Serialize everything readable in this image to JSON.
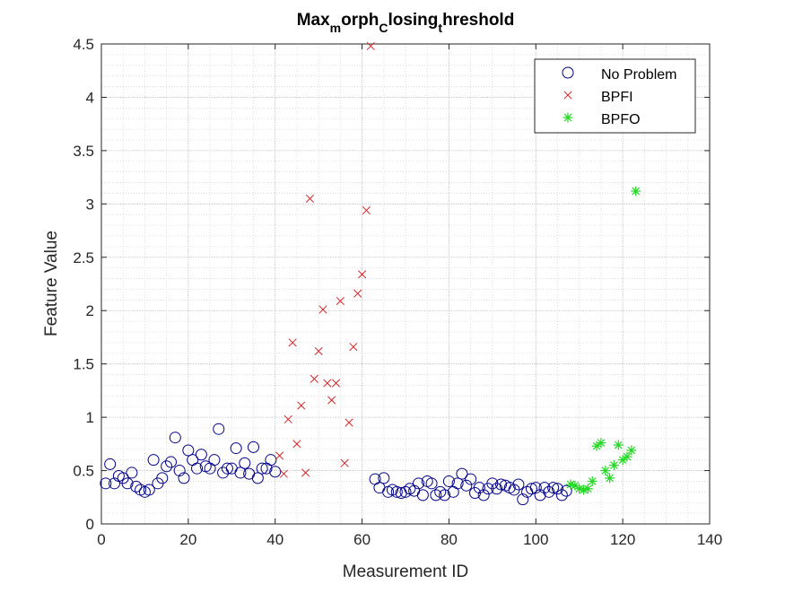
{
  "chart_data": {
    "type": "scatter",
    "title": "Max_morph_Closing_threshold",
    "title_parts": [
      {
        "text": "Max",
        "sub": false
      },
      {
        "text": "m",
        "sub": true
      },
      {
        "text": "orph",
        "sub": false
      },
      {
        "text": "C",
        "sub": true
      },
      {
        "text": "losing",
        "sub": false
      },
      {
        "text": "t",
        "sub": true
      },
      {
        "text": "hreshold",
        "sub": false
      }
    ],
    "xlabel": "Measurement ID",
    "ylabel": "Feature Value",
    "xlim": [
      0,
      140
    ],
    "ylim": [
      0,
      4.5
    ],
    "xticks": [
      0,
      20,
      40,
      60,
      80,
      100,
      120,
      140
    ],
    "xtick_labels": [
      "0",
      "20",
      "40",
      "60",
      "80",
      "100",
      "120",
      "140"
    ],
    "yticks": [
      0,
      0.5,
      1,
      1.5,
      2,
      2.5,
      3,
      3.5,
      4,
      4.5
    ],
    "ytick_labels": [
      "0",
      "0.5",
      "1",
      "1.5",
      "2",
      "2.5",
      "3",
      "3.5",
      "4",
      "4.5"
    ],
    "grid": true,
    "minor_grid": true,
    "legend_position": "top-right",
    "series": [
      {
        "name": "No Problem",
        "marker": "circle",
        "color": "#00008b",
        "x": [
          1,
          2,
          3,
          4,
          5,
          6,
          7,
          8,
          9,
          10,
          11,
          12,
          13,
          14,
          15,
          16,
          17,
          18,
          19,
          20,
          21,
          22,
          23,
          24,
          25,
          26,
          27,
          28,
          29,
          30,
          31,
          32,
          33,
          34,
          35,
          36,
          37,
          38,
          39,
          40,
          63,
          64,
          65,
          66,
          67,
          68,
          69,
          70,
          71,
          72,
          73,
          74,
          75,
          76,
          77,
          78,
          79,
          80,
          81,
          82,
          83,
          84,
          85,
          86,
          87,
          88,
          89,
          90,
          91,
          92,
          93,
          94,
          95,
          96,
          97,
          98,
          99,
          100,
          101,
          102,
          103,
          104,
          105,
          106,
          107
        ],
        "y": [
          0.38,
          0.56,
          0.38,
          0.45,
          0.43,
          0.38,
          0.48,
          0.35,
          0.32,
          0.3,
          0.32,
          0.6,
          0.38,
          0.43,
          0.54,
          0.58,
          0.81,
          0.5,
          0.43,
          0.69,
          0.6,
          0.52,
          0.65,
          0.54,
          0.52,
          0.6,
          0.89,
          0.48,
          0.52,
          0.52,
          0.71,
          0.48,
          0.57,
          0.47,
          0.72,
          0.43,
          0.52,
          0.52,
          0.6,
          0.49,
          0.42,
          0.34,
          0.43,
          0.3,
          0.32,
          0.3,
          0.29,
          0.3,
          0.33,
          0.31,
          0.38,
          0.27,
          0.4,
          0.38,
          0.27,
          0.3,
          0.27,
          0.4,
          0.3,
          0.38,
          0.47,
          0.36,
          0.42,
          0.29,
          0.34,
          0.27,
          0.33,
          0.38,
          0.33,
          0.37,
          0.36,
          0.34,
          0.32,
          0.37,
          0.23,
          0.3,
          0.33,
          0.34,
          0.27,
          0.34,
          0.3,
          0.34,
          0.33,
          0.27,
          0.31
        ]
      },
      {
        "name": "BPFI",
        "marker": "x",
        "color": "#d62728",
        "x": [
          41,
          42,
          43,
          44,
          45,
          46,
          47,
          48,
          49,
          50,
          51,
          52,
          53,
          54,
          55,
          56,
          57,
          58,
          59,
          60,
          61,
          62
        ],
        "y": [
          0.64,
          0.47,
          0.98,
          1.7,
          0.75,
          1.11,
          0.48,
          3.05,
          1.36,
          1.62,
          2.01,
          1.32,
          1.16,
          1.32,
          2.09,
          0.57,
          0.95,
          1.66,
          2.16,
          2.34,
          2.94,
          4.48
        ]
      },
      {
        "name": "BPFO",
        "marker": "asterisk",
        "color": "#22d822",
        "x": [
          108,
          109,
          110,
          111,
          112,
          113,
          114,
          115,
          116,
          117,
          118,
          119,
          120,
          121,
          122,
          123
        ],
        "y": [
          0.37,
          0.36,
          0.33,
          0.32,
          0.33,
          0.4,
          0.73,
          0.76,
          0.5,
          0.43,
          0.55,
          0.74,
          0.6,
          0.63,
          0.69,
          3.12
        ]
      }
    ]
  }
}
